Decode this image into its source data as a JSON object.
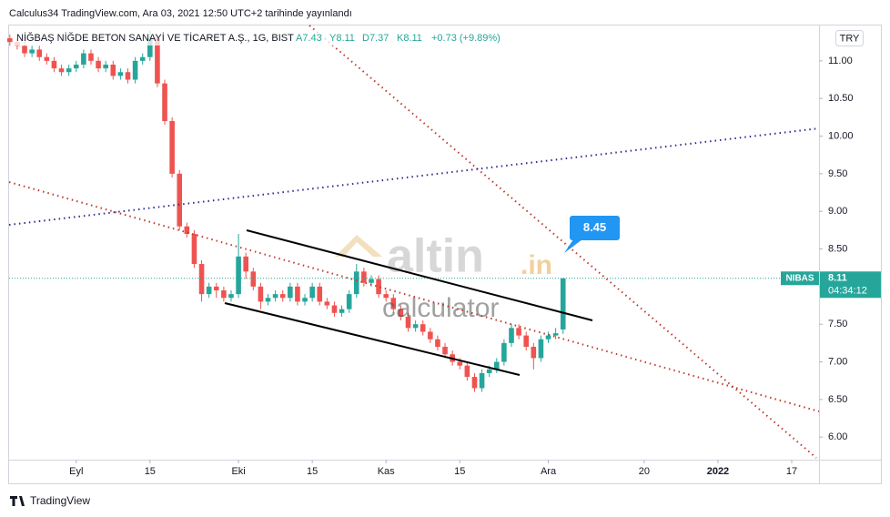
{
  "header": {
    "published": "Calculus34 TradingView.com, Ara 03, 2021 12:50 UTC+2 tarihinde yayınlandı",
    "symbol": "NİĞBAŞ NİĞDE BETON SANAYİ VE TİCARET A.Ş., 1G, BIST",
    "ohlc_labels": [
      "A7.43",
      "Y8.11",
      "D7.37",
      "K8.11"
    ],
    "change": "+0.73 (+9.89%)",
    "currency": "TRY"
  },
  "footer": {
    "brand": "TradingView"
  },
  "watermark": {
    "name": "altin",
    "suffix": ".in",
    "sub": "calculator"
  },
  "chart_data": {
    "type": "candlestick",
    "x": [
      -9,
      -8,
      -7,
      -6,
      -5,
      -4,
      -3,
      -2,
      -1,
      0,
      1,
      2,
      3,
      4,
      5,
      6,
      7,
      8,
      9,
      10,
      11,
      12,
      13,
      14,
      15,
      16,
      17,
      18,
      19,
      20,
      21,
      22,
      23,
      24,
      25,
      26,
      27,
      28,
      29,
      30,
      31,
      32,
      33,
      34,
      35,
      36,
      37,
      38,
      39,
      40,
      41,
      42,
      43,
      44,
      45,
      46,
      47,
      48,
      49,
      50,
      51,
      52,
      53,
      54,
      55,
      56,
      57,
      58,
      59,
      60,
      61,
      62,
      63,
      64,
      65,
      66
    ],
    "open": [
      11.3,
      11.25,
      11.2,
      11.1,
      11.15,
      11.05,
      11.0,
      10.9,
      10.85,
      10.9,
      10.95,
      11.1,
      11.0,
      10.9,
      10.95,
      10.8,
      10.85,
      10.75,
      11.0,
      11.05,
      11.3,
      10.7,
      10.2,
      9.5,
      8.8,
      8.7,
      8.3,
      7.9,
      8.0,
      7.95,
      7.85,
      7.9,
      8.4,
      8.2,
      8.0,
      7.8,
      7.85,
      7.9,
      7.85,
      8.0,
      7.8,
      7.85,
      8.0,
      7.8,
      7.75,
      7.65,
      7.7,
      7.9,
      8.2,
      8.05,
      8.1,
      7.9,
      7.85,
      7.7,
      7.6,
      7.45,
      7.5,
      7.4,
      7.3,
      7.2,
      7.1,
      7.0,
      6.95,
      6.8,
      6.65,
      6.85,
      6.9,
      7.0,
      7.25,
      7.45,
      7.35,
      7.2,
      7.05,
      7.3,
      7.35,
      7.43
    ],
    "high": [
      11.35,
      11.3,
      11.25,
      11.2,
      11.2,
      11.1,
      11.05,
      10.95,
      10.95,
      11.0,
      11.15,
      11.15,
      11.05,
      11.0,
      11.0,
      10.9,
      10.9,
      11.05,
      11.1,
      11.4,
      11.35,
      10.75,
      10.25,
      9.55,
      8.85,
      8.75,
      8.35,
      8.05,
      8.05,
      8.0,
      7.95,
      8.7,
      8.45,
      8.25,
      8.05,
      7.9,
      7.95,
      7.95,
      8.05,
      8.05,
      7.9,
      8.05,
      8.05,
      7.85,
      7.8,
      7.75,
      7.95,
      8.3,
      8.25,
      8.15,
      8.15,
      7.95,
      7.9,
      7.75,
      7.65,
      7.55,
      7.55,
      7.45,
      7.35,
      7.25,
      7.15,
      7.05,
      7.0,
      6.85,
      6.9,
      6.95,
      7.05,
      7.3,
      7.5,
      7.5,
      7.4,
      7.25,
      7.35,
      7.4,
      7.45,
      8.11
    ],
    "low": [
      11.2,
      11.15,
      11.05,
      11.05,
      11.0,
      10.95,
      10.85,
      10.8,
      10.8,
      10.85,
      10.9,
      10.95,
      10.85,
      10.85,
      10.75,
      10.75,
      10.7,
      10.7,
      10.95,
      11.0,
      10.65,
      10.15,
      9.45,
      8.75,
      8.65,
      8.25,
      7.8,
      7.85,
      7.85,
      7.8,
      7.8,
      7.85,
      8.1,
      7.95,
      7.7,
      7.75,
      7.8,
      7.8,
      7.8,
      7.75,
      7.75,
      7.8,
      7.75,
      7.7,
      7.6,
      7.6,
      7.65,
      7.85,
      8.0,
      8.0,
      7.85,
      7.8,
      7.65,
      7.55,
      7.4,
      7.4,
      7.35,
      7.25,
      7.15,
      7.05,
      6.95,
      6.9,
      6.75,
      6.6,
      6.6,
      6.8,
      6.85,
      6.95,
      7.2,
      7.3,
      7.15,
      6.9,
      7.0,
      7.25,
      7.3,
      7.37
    ],
    "close": [
      11.25,
      11.2,
      11.1,
      11.15,
      11.05,
      11.0,
      10.9,
      10.85,
      10.9,
      10.95,
      11.1,
      11.0,
      10.9,
      10.95,
      10.8,
      10.85,
      10.75,
      11.0,
      11.05,
      11.3,
      10.7,
      10.2,
      9.5,
      8.8,
      8.7,
      8.3,
      7.9,
      8.0,
      7.95,
      7.85,
      7.9,
      8.4,
      8.2,
      8.0,
      7.8,
      7.85,
      7.9,
      7.85,
      8.0,
      7.8,
      7.85,
      8.0,
      7.8,
      7.75,
      7.65,
      7.7,
      7.9,
      8.2,
      8.05,
      8.1,
      7.9,
      7.85,
      7.7,
      7.6,
      7.45,
      7.5,
      7.4,
      7.3,
      7.2,
      7.1,
      7.0,
      6.95,
      6.8,
      6.65,
      6.85,
      6.9,
      7.0,
      7.25,
      7.45,
      7.35,
      7.2,
      7.05,
      7.3,
      7.35,
      7.38,
      8.11
    ],
    "up_color": "#26a69a",
    "down_color": "#ef5350",
    "xlim": [
      -9.1,
      100.7
    ],
    "xticks": [
      {
        "value": 0,
        "label": "Eyl"
      },
      {
        "value": 10,
        "label": "15"
      },
      {
        "value": 22,
        "label": "Eki"
      },
      {
        "value": 32,
        "label": "15"
      },
      {
        "value": 42,
        "label": "Kas"
      },
      {
        "value": 52,
        "label": "15"
      },
      {
        "value": 64,
        "label": "Ara"
      },
      {
        "value": 77,
        "label": "20"
      },
      {
        "value": 87,
        "label": "2022"
      },
      {
        "value": 97,
        "label": "17"
      }
    ],
    "ylim": [
      5.7,
      11.47
    ],
    "yticks": [
      {
        "value": 6,
        "label": "6.00"
      },
      {
        "value": 6.5,
        "label": "6.50"
      },
      {
        "value": 7,
        "label": "7.00"
      },
      {
        "value": 7.5,
        "label": "7.50"
      },
      {
        "value": 8,
        "label": "8.00"
      },
      {
        "value": 8.5,
        "label": "8.50"
      },
      {
        "value": 9,
        "label": "9.00"
      },
      {
        "value": 9.5,
        "label": "9.50"
      },
      {
        "value": 10,
        "label": "10.00"
      },
      {
        "value": 10.5,
        "label": "10.50"
      },
      {
        "value": 11,
        "label": "11.00"
      }
    ],
    "last_price": {
      "ticker": "NIBAS",
      "label": "8.11",
      "countdown": "04:34:12"
    },
    "annotation": "8.45"
  }
}
